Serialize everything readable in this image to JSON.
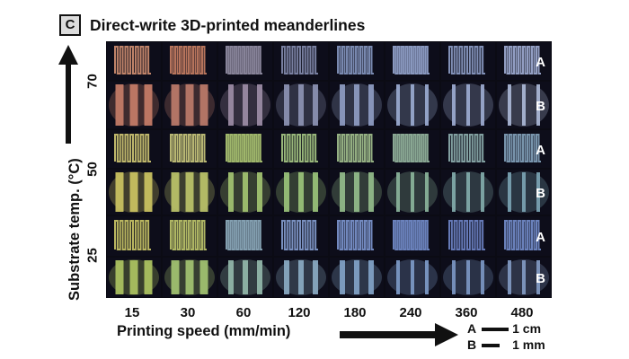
{
  "panel": {
    "badge": "C",
    "title": "Direct-write 3D-printed meanderlines"
  },
  "y_axis": {
    "label": "Substrate temp. (°C)",
    "ticks": [
      "70",
      "50",
      "25"
    ]
  },
  "x_axis": {
    "label": "Printing speed (mm/min)",
    "ticks": [
      "15",
      "30",
      "60",
      "120",
      "180",
      "240",
      "360",
      "480"
    ]
  },
  "row_labels": [
    "A",
    "B"
  ],
  "scale_bars": [
    {
      "key": "A",
      "text": "1 cm"
    },
    {
      "key": "B",
      "text": "1 mm"
    }
  ],
  "colors": {
    "background_grid": "#0b0b14",
    "row_70_A": [
      "#c98a6e",
      "#c07a60",
      "#8e8aa0",
      "#7e86a8",
      "#8090b8",
      "#90a0c8",
      "#8898c0",
      "#9aa6cc"
    ],
    "row_70_B": [
      "#c27a66",
      "#b87868",
      "#9a8aa2",
      "#8a90b0",
      "#8c9ac0",
      "#98a8cc",
      "#9aa8cc",
      "#a8b4d2"
    ],
    "row_50_A": [
      "#c8c070",
      "#c2c078",
      "#a8c070",
      "#a0c080",
      "#9cb888",
      "#90b09a",
      "#88a8a8",
      "#7e9cb4"
    ],
    "row_50_B": [
      "#c8c060",
      "#b8c068",
      "#a0c070",
      "#98c078",
      "#90b888",
      "#88b098",
      "#80a8a8",
      "#78a0b0"
    ],
    "row_25_A": [
      "#c4c064",
      "#b8c068",
      "#8aa8b8",
      "#8098c8",
      "#7890c8",
      "#7088c4",
      "#6a80c0",
      "#7088c4"
    ],
    "row_25_B": [
      "#aac060",
      "#a0c070",
      "#90b4a8",
      "#88a8c0",
      "#80a0c4",
      "#7a98c4",
      "#7894c0",
      "#8098c0"
    ]
  }
}
